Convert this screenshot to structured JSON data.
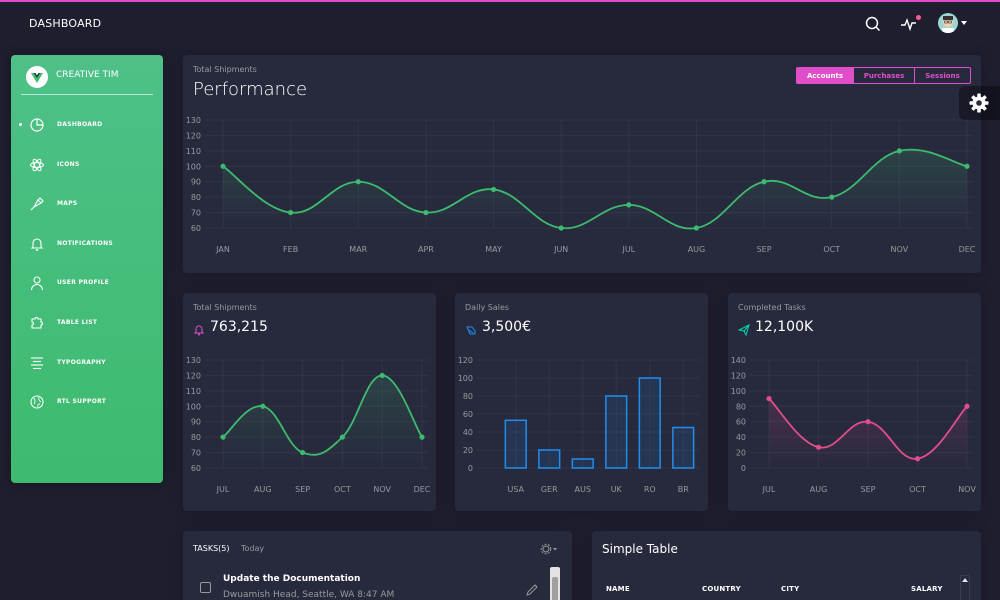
{
  "header": {
    "title": "DASHBOARD",
    "icons": [
      "search-icon",
      "activity-icon",
      "avatar"
    ]
  },
  "sidebar": {
    "brand": "CREATIVE TIM",
    "items": [
      {
        "label": "DASHBOARD",
        "icon": "chart-pie-icon",
        "active": true
      },
      {
        "label": "ICONS",
        "icon": "atom-icon",
        "active": false
      },
      {
        "label": "MAPS",
        "icon": "pin-icon",
        "active": false
      },
      {
        "label": "NOTIFICATIONS",
        "icon": "bell-icon",
        "active": false
      },
      {
        "label": "USER PROFILE",
        "icon": "user-icon",
        "active": false
      },
      {
        "label": "TABLE LIST",
        "icon": "puzzle-icon",
        "active": false
      },
      {
        "label": "TYPOGRAPHY",
        "icon": "align-center-icon",
        "active": false
      },
      {
        "label": "RTL SUPPORT",
        "icon": "world-icon",
        "active": false
      }
    ]
  },
  "performance": {
    "subtitle": "Total Shipments",
    "title": "Performance",
    "buttons": [
      {
        "label": "Accounts",
        "active": true
      },
      {
        "label": "Purchases",
        "active": false
      },
      {
        "label": "Sessions",
        "active": false
      }
    ]
  },
  "shipments": {
    "subtitle": "Total Shipments",
    "value": "763,215"
  },
  "sales": {
    "subtitle": "Daily Sales",
    "value": "3,500€"
  },
  "completed": {
    "subtitle": "Completed Tasks",
    "value": "12,100K"
  },
  "tasks": {
    "label": "TASKS(5)",
    "today": "Today",
    "items": [
      {
        "title": "Update the Documentation",
        "desc": "Dwuamish Head, Seattle, WA 8:47 AM"
      }
    ]
  },
  "simple_table": {
    "title": "Simple Table",
    "columns": [
      "NAME",
      "COUNTRY",
      "CITY",
      "SALARY"
    ]
  },
  "colors": {
    "green": "#00d6b4",
    "pink": "#e14eca",
    "blue": "#1f8ef1",
    "red": "#fd5d93",
    "sidebar": "#3dbb6e"
  },
  "chart_data": [
    {
      "type": "line",
      "title": "Performance",
      "categories": [
        "JAN",
        "FEB",
        "MAR",
        "APR",
        "MAY",
        "JUN",
        "JUL",
        "AUG",
        "SEP",
        "OCT",
        "NOV",
        "DEC"
      ],
      "values": [
        100,
        70,
        90,
        70,
        85,
        60,
        75,
        60,
        90,
        80,
        110,
        100
      ],
      "ylim": [
        60,
        130
      ],
      "yticks": [
        60,
        70,
        80,
        90,
        100,
        110,
        120,
        130
      ],
      "color": "#3dbb6e"
    },
    {
      "type": "line",
      "title": "Total Shipments",
      "categories": [
        "JUL",
        "AUG",
        "SEP",
        "OCT",
        "NOV",
        "DEC"
      ],
      "values": [
        80,
        100,
        70,
        80,
        120,
        80
      ],
      "ylim": [
        60,
        130
      ],
      "yticks": [
        60,
        70,
        80,
        90,
        100,
        110,
        120,
        130
      ],
      "color": "#3dbb6e"
    },
    {
      "type": "bar",
      "title": "Daily Sales",
      "categories": [
        "USA",
        "GER",
        "AUS",
        "UK",
        "RO",
        "BR"
      ],
      "values": [
        53,
        20,
        10,
        80,
        100,
        45
      ],
      "ylim": [
        0,
        120
      ],
      "yticks": [
        0,
        20,
        40,
        60,
        80,
        100,
        120
      ],
      "color": "#1f8ef1"
    },
    {
      "type": "line",
      "title": "Completed Tasks",
      "categories": [
        "JUL",
        "AUG",
        "SEP",
        "OCT",
        "NOV"
      ],
      "values": [
        90,
        27,
        60,
        12,
        80
      ],
      "ylim": [
        0,
        140
      ],
      "yticks": [
        0,
        20,
        40,
        60,
        80,
        100,
        120,
        140
      ],
      "color": "#e14e8a"
    }
  ]
}
